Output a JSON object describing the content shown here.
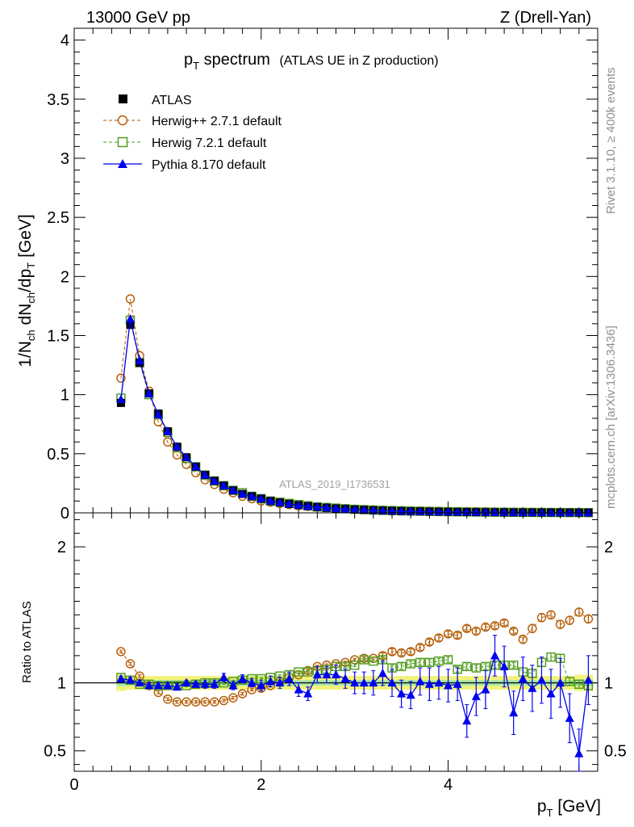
{
  "header": {
    "left": "13000 GeV pp",
    "right": "Z (Drell-Yan)"
  },
  "side_labels": {
    "rivet": "Rivet 3.1.10, ≥ 400k events",
    "mcplots": "mcplots.cern.ch [arXiv:1306.3436]"
  },
  "colors": {
    "atlas": "#000000",
    "herwigpp": "#b35900",
    "herwig7": "#4d9a1a",
    "pythia": "#0000ee",
    "band_outer": "#f2f27a",
    "band_inner": "#a8e6a8"
  },
  "chart_data": [
    {
      "type": "scatter",
      "panel": "main",
      "title_main": "p",
      "title_sub": "T",
      "title_rest": " spectrum",
      "title_note": "(ATLAS UE in Z production)",
      "analysis_id": "ATLAS_2019_I1736531",
      "ylabel": {
        "a": "1/N",
        "b": "ch",
        "c": " dN",
        "d": "ch",
        "e": "/dp",
        "f": "T",
        "g": " [GeV]"
      },
      "xlim": [
        0,
        5.6
      ],
      "ylim": [
        0,
        4.1
      ],
      "yticks": [
        "0",
        "0.5",
        "1",
        "1.5",
        "2",
        "2.5",
        "3",
        "3.5",
        "4"
      ],
      "legend": [
        "ATLAS",
        "Herwig++ 2.7.1 default",
        "Herwig 7.2.1 default",
        "Pythia 8.170 default"
      ],
      "x": [
        0.5,
        0.6,
        0.7,
        0.8,
        0.9,
        1.0,
        1.1,
        1.2,
        1.3,
        1.4,
        1.5,
        1.6,
        1.7,
        1.8,
        1.9,
        2.0,
        2.1,
        2.2,
        2.3,
        2.4,
        2.5,
        2.6,
        2.7,
        2.8,
        2.9,
        3.0,
        3.1,
        3.2,
        3.3,
        3.4,
        3.5,
        3.6,
        3.7,
        3.8,
        3.9,
        4.0,
        4.1,
        4.2,
        4.3,
        4.4,
        4.5,
        4.6,
        4.7,
        4.8,
        4.9,
        5.0,
        5.1,
        5.2,
        5.3,
        5.4,
        5.5
      ],
      "series": [
        {
          "name": "ATLAS",
          "values": [
            0.93,
            1.59,
            1.27,
            1.01,
            0.84,
            0.69,
            0.56,
            0.47,
            0.39,
            0.32,
            0.27,
            0.23,
            0.19,
            0.16,
            0.14,
            0.12,
            0.1,
            0.087,
            0.075,
            0.065,
            0.056,
            0.049,
            0.043,
            0.037,
            0.032,
            0.028,
            0.025,
            0.022,
            0.019,
            0.017,
            0.015,
            0.013,
            0.012,
            0.011,
            0.0095,
            0.0085,
            0.0076,
            0.0068,
            0.006,
            0.0054,
            0.0048,
            0.0043,
            0.0039,
            0.0035,
            0.0031,
            0.0028,
            0.0025,
            0.0023,
            0.0021,
            0.0019,
            0.0017
          ]
        },
        {
          "name": "Herwig++ 2.7.1 default",
          "values": [
            1.14,
            1.81,
            1.33,
            1.03,
            0.77,
            0.6,
            0.49,
            0.41,
            0.34,
            0.28,
            0.24,
            0.2,
            0.17,
            0.14,
            0.12,
            0.1,
            0.09,
            0.08,
            0.07,
            0.06,
            0.055,
            0.05,
            0.045,
            0.04,
            0.035,
            0.031,
            0.028,
            0.025,
            0.022,
            0.02,
            0.018,
            0.016,
            0.015,
            0.014,
            0.013,
            0.011,
            0.01,
            0.009,
            0.0085,
            0.0075,
            0.007,
            0.0063,
            0.0057,
            0.0051,
            0.0046,
            0.0042,
            0.0038,
            0.0035,
            0.0032,
            0.0029,
            0.0026
          ]
        },
        {
          "name": "Herwig 7.2.1 default",
          "values": [
            0.97,
            1.63,
            1.27,
            1.0,
            0.83,
            0.68,
            0.55,
            0.46,
            0.39,
            0.32,
            0.27,
            0.23,
            0.19,
            0.17,
            0.14,
            0.12,
            0.1,
            0.09,
            0.08,
            0.07,
            0.06,
            0.05,
            0.045,
            0.04,
            0.035,
            0.03,
            0.027,
            0.024,
            0.021,
            0.019,
            0.017,
            0.015,
            0.014,
            0.012,
            0.011,
            0.01,
            0.009,
            0.008,
            0.007,
            0.0065,
            0.0058,
            0.0052,
            0.0046,
            0.0041,
            0.0037,
            0.0033,
            0.003,
            0.0027,
            0.0024,
            0.0022,
            0.002
          ]
        },
        {
          "name": "Pythia 8.170 default",
          "values": [
            0.96,
            1.64,
            1.29,
            1.01,
            0.83,
            0.69,
            0.56,
            0.47,
            0.39,
            0.32,
            0.27,
            0.23,
            0.19,
            0.16,
            0.14,
            0.12,
            0.1,
            0.088,
            0.075,
            0.065,
            0.056,
            0.05,
            0.045,
            0.038,
            0.032,
            0.028,
            0.025,
            0.022,
            0.019,
            0.017,
            0.015,
            0.013,
            0.012,
            0.011,
            0.0095,
            0.0085,
            0.0076,
            0.0068,
            0.006,
            0.0054,
            0.0048,
            0.0043,
            0.0039,
            0.0035,
            0.0031,
            0.0028,
            0.0025,
            0.0023,
            0.0021,
            0.0019,
            0.0017
          ]
        }
      ]
    },
    {
      "type": "scatter",
      "panel": "ratio",
      "ylabel": "Ratio to ATLAS",
      "xlabel_main": "p",
      "xlabel_sub": "T",
      "xlabel_rest": " [GeV]",
      "xlim": [
        0,
        5.6
      ],
      "ylim": [
        0.35,
        2.25
      ],
      "xticks": [
        "0",
        "2",
        "4"
      ],
      "yticks": [
        "0.5",
        "1",
        "2"
      ],
      "x": [
        0.5,
        0.6,
        0.7,
        0.8,
        0.9,
        1.0,
        1.1,
        1.2,
        1.3,
        1.4,
        1.5,
        1.6,
        1.7,
        1.8,
        1.9,
        2.0,
        2.1,
        2.2,
        2.3,
        2.4,
        2.5,
        2.6,
        2.7,
        2.8,
        2.9,
        3.0,
        3.1,
        3.2,
        3.3,
        3.4,
        3.5,
        3.6,
        3.7,
        3.8,
        3.9,
        4.0,
        4.1,
        4.2,
        4.3,
        4.4,
        4.5,
        4.6,
        4.7,
        4.8,
        4.9,
        5.0,
        5.1,
        5.2,
        5.3,
        5.4,
        5.5
      ],
      "band_outer": [
        0.06,
        0.05,
        0.05,
        0.05,
        0.05,
        0.05,
        0.05,
        0.05,
        0.05,
        0.05,
        0.05,
        0.05,
        0.05,
        0.05,
        0.05,
        0.05,
        0.05,
        0.05,
        0.05,
        0.05,
        0.05,
        0.05,
        0.05,
        0.05,
        0.05,
        0.05,
        0.05,
        0.05,
        0.05,
        0.05,
        0.05,
        0.05,
        0.05,
        0.05,
        0.05,
        0.05,
        0.05,
        0.05,
        0.05,
        0.05,
        0.05,
        0.05,
        0.05,
        0.05,
        0.05,
        0.05,
        0.05,
        0.05,
        0.05,
        0.06,
        0.06
      ],
      "band_inner": [
        0.025,
        0.02,
        0.02,
        0.02,
        0.02,
        0.02,
        0.02,
        0.02,
        0.02,
        0.02,
        0.02,
        0.02,
        0.02,
        0.02,
        0.02,
        0.02,
        0.02,
        0.02,
        0.02,
        0.02,
        0.02,
        0.02,
        0.02,
        0.02,
        0.02,
        0.02,
        0.02,
        0.02,
        0.02,
        0.02,
        0.02,
        0.02,
        0.02,
        0.02,
        0.02,
        0.02,
        0.02,
        0.02,
        0.02,
        0.02,
        0.02,
        0.02,
        0.02,
        0.02,
        0.02,
        0.02,
        0.02,
        0.02,
        0.02,
        0.025,
        0.025
      ],
      "series": [
        {
          "name": "Herwig++ 2.7.1 default",
          "values": [
            1.23,
            1.14,
            1.05,
            0.98,
            0.93,
            0.88,
            0.86,
            0.86,
            0.86,
            0.86,
            0.86,
            0.87,
            0.89,
            0.92,
            0.95,
            0.96,
            0.98,
            1.01,
            1.04,
            1.06,
            1.09,
            1.12,
            1.13,
            1.14,
            1.15,
            1.17,
            1.18,
            1.18,
            1.2,
            1.23,
            1.22,
            1.23,
            1.26,
            1.3,
            1.33,
            1.36,
            1.35,
            1.4,
            1.38,
            1.41,
            1.42,
            1.44,
            1.38,
            1.32,
            1.4,
            1.48,
            1.5,
            1.43,
            1.46,
            1.52,
            1.47
          ],
          "errors": [
            0.01,
            0.01,
            0.01,
            0.01,
            0.01,
            0.01,
            0.01,
            0.01,
            0.01,
            0.01,
            0.01,
            0.01,
            0.01,
            0.01,
            0.01,
            0.01,
            0.01,
            0.01,
            0.01,
            0.01,
            0.01,
            0.01,
            0.01,
            0.01,
            0.01,
            0.01,
            0.01,
            0.01,
            0.02,
            0.02,
            0.02,
            0.02,
            0.02,
            0.02,
            0.02,
            0.02,
            0.02,
            0.02,
            0.02,
            0.02,
            0.02,
            0.02,
            0.02,
            0.03,
            0.03,
            0.03,
            0.03,
            0.03,
            0.03,
            0.03,
            0.03
          ]
        },
        {
          "name": "Herwig 7.2.1 default",
          "values": [
            1.04,
            1.02,
            0.99,
            0.99,
            0.98,
            0.98,
            0.98,
            0.98,
            0.99,
            1.0,
            1.0,
            1.0,
            1.01,
            1.02,
            1.03,
            1.03,
            1.04,
            1.05,
            1.06,
            1.08,
            1.08,
            1.09,
            1.1,
            1.12,
            1.12,
            1.13,
            1.17,
            1.16,
            1.17,
            1.11,
            1.12,
            1.14,
            1.15,
            1.15,
            1.16,
            1.17,
            1.1,
            1.12,
            1.11,
            1.12,
            1.13,
            1.13,
            1.13,
            1.08,
            1.07,
            1.15,
            1.19,
            1.18,
            1.01,
            0.99,
            0.98
          ],
          "errors": [
            0.01,
            0.01,
            0.01,
            0.01,
            0.01,
            0.01,
            0.01,
            0.01,
            0.01,
            0.01,
            0.01,
            0.01,
            0.01,
            0.01,
            0.01,
            0.01,
            0.01,
            0.01,
            0.01,
            0.01,
            0.01,
            0.01,
            0.01,
            0.01,
            0.01,
            0.01,
            0.01,
            0.01,
            0.02,
            0.02,
            0.02,
            0.02,
            0.02,
            0.02,
            0.02,
            0.02,
            0.02,
            0.02,
            0.02,
            0.02,
            0.02,
            0.02,
            0.02,
            0.03,
            0.03,
            0.03,
            0.03,
            0.03,
            0.03,
            0.03,
            0.03
          ]
        },
        {
          "name": "Pythia 8.170 default",
          "values": [
            1.03,
            1.02,
            1.0,
            0.98,
            0.98,
            0.98,
            0.97,
            1.0,
            0.99,
            0.99,
            0.99,
            1.04,
            0.98,
            1.03,
            1.0,
            0.98,
            1.01,
            1.0,
            1.03,
            0.95,
            0.92,
            1.06,
            1.06,
            1.06,
            1.03,
            1.0,
            1.0,
            1.0,
            1.07,
            1.0,
            0.92,
            0.91,
            1.01,
            0.99,
            1.0,
            0.98,
            0.99,
            0.72,
            0.9,
            0.95,
            1.2,
            1.12,
            0.78,
            1.03,
            0.96,
            1.02,
            0.92,
            1.0,
            0.74,
            0.48,
            1.02
          ],
          "errors": [
            0.02,
            0.02,
            0.02,
            0.02,
            0.02,
            0.02,
            0.02,
            0.02,
            0.02,
            0.03,
            0.03,
            0.03,
            0.03,
            0.03,
            0.03,
            0.04,
            0.04,
            0.04,
            0.05,
            0.05,
            0.05,
            0.06,
            0.06,
            0.07,
            0.07,
            0.08,
            0.08,
            0.09,
            0.09,
            0.1,
            0.1,
            0.1,
            0.1,
            0.12,
            0.12,
            0.12,
            0.12,
            0.12,
            0.14,
            0.14,
            0.15,
            0.15,
            0.16,
            0.16,
            0.17,
            0.17,
            0.18,
            0.18,
            0.18,
            0.18,
            0.18
          ]
        }
      ]
    }
  ]
}
